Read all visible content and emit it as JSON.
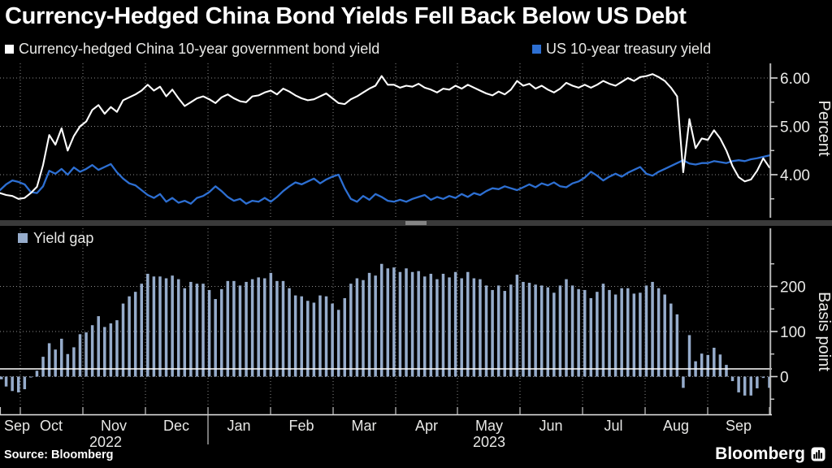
{
  "title": "Currency-Hedged China Bond Yields Fell Back Below US Debt",
  "legend_top": [
    {
      "label": "Currency-hedged China 10-year government bond yield",
      "color": "#ffffff"
    },
    {
      "label": "US 10-year treasury yield",
      "color": "#2d6fd2"
    }
  ],
  "legend_bottom": {
    "label": "Yield gap",
    "color": "#96accb"
  },
  "source": "Source: Bloomberg",
  "brand": "Bloomberg",
  "x_axis": {
    "months": [
      "Sep",
      "Oct",
      "Nov",
      "Dec",
      "Jan",
      "Feb",
      "Mar",
      "Apr",
      "May",
      "Jun",
      "Jul",
      "Aug",
      "Sep"
    ],
    "years": [
      "2022",
      "2023"
    ],
    "range_note": "mid-Sep 2022 through mid-Sep 2023, ~2-day sampling, 126 points"
  },
  "chart_data": [
    {
      "type": "line",
      "panel": "top",
      "y_axis": {
        "label": "Percent",
        "tick_labels": [
          "6.00",
          "5.00",
          "4.00"
        ],
        "tick_values": [
          6,
          5,
          4
        ],
        "minor_ticks": [
          5.5,
          4.5,
          3.5
        ],
        "range": [
          3.1,
          6.3
        ],
        "grid": "dotted"
      },
      "legend_position": "top-left",
      "series": [
        {
          "name": "Currency-hedged China 10-year government bond yield",
          "color": "#ffffff",
          "values": [
            3.62,
            3.58,
            3.56,
            3.5,
            3.52,
            3.62,
            3.75,
            4.2,
            4.82,
            4.62,
            4.96,
            4.5,
            4.8,
            5.0,
            5.1,
            5.34,
            5.44,
            5.26,
            5.4,
            5.3,
            5.54,
            5.6,
            5.66,
            5.74,
            5.86,
            5.74,
            5.82,
            5.62,
            5.76,
            5.58,
            5.42,
            5.5,
            5.58,
            5.62,
            5.56,
            5.48,
            5.6,
            5.66,
            5.58,
            5.52,
            5.5,
            5.62,
            5.64,
            5.7,
            5.74,
            5.66,
            5.78,
            5.72,
            5.64,
            5.58,
            5.54,
            5.56,
            5.62,
            5.68,
            5.58,
            5.48,
            5.46,
            5.56,
            5.62,
            5.7,
            5.78,
            5.84,
            6.04,
            5.86,
            5.86,
            5.8,
            5.84,
            5.82,
            5.88,
            5.8,
            5.76,
            5.7,
            5.78,
            5.76,
            5.84,
            5.78,
            5.86,
            5.8,
            5.74,
            5.68,
            5.64,
            5.72,
            5.66,
            5.76,
            5.94,
            5.84,
            5.88,
            5.78,
            5.84,
            5.76,
            5.7,
            5.78,
            5.9,
            5.84,
            5.8,
            5.86,
            5.8,
            5.86,
            5.94,
            5.88,
            5.84,
            5.92,
            6.0,
            5.94,
            6.02,
            6.04,
            6.08,
            6.02,
            5.94,
            5.8,
            5.62,
            4.05,
            5.15,
            4.55,
            4.75,
            4.72,
            4.92,
            4.75,
            4.5,
            4.18,
            3.95,
            3.86,
            3.9,
            4.08,
            4.34,
            4.15
          ]
        },
        {
          "name": "US 10-year treasury yield",
          "color": "#2d6fd2",
          "values": [
            3.68,
            3.8,
            3.88,
            3.85,
            3.8,
            3.64,
            3.62,
            3.76,
            4.08,
            4.02,
            4.12,
            4.0,
            4.15,
            4.06,
            4.12,
            4.2,
            4.1,
            4.16,
            4.22,
            4.05,
            3.92,
            3.82,
            3.78,
            3.68,
            3.58,
            3.52,
            3.6,
            3.44,
            3.52,
            3.42,
            3.46,
            3.4,
            3.52,
            3.56,
            3.64,
            3.76,
            3.66,
            3.54,
            3.46,
            3.5,
            3.4,
            3.46,
            3.44,
            3.52,
            3.44,
            3.54,
            3.66,
            3.76,
            3.84,
            3.8,
            3.86,
            3.92,
            3.82,
            3.9,
            3.96,
            4.0,
            3.72,
            3.5,
            3.44,
            3.56,
            3.48,
            3.6,
            3.54,
            3.46,
            3.44,
            3.48,
            3.44,
            3.5,
            3.54,
            3.58,
            3.48,
            3.54,
            3.5,
            3.56,
            3.52,
            3.6,
            3.54,
            3.62,
            3.58,
            3.66,
            3.72,
            3.7,
            3.76,
            3.72,
            3.68,
            3.74,
            3.8,
            3.74,
            3.82,
            3.78,
            3.84,
            3.76,
            3.74,
            3.82,
            3.86,
            3.94,
            4.06,
            3.98,
            3.88,
            3.96,
            4.02,
            3.96,
            4.04,
            4.1,
            4.16,
            4.02,
            3.98,
            4.06,
            4.12,
            4.18,
            4.24,
            4.3,
            4.23,
            4.21,
            4.24,
            4.24,
            4.28,
            4.26,
            4.24,
            4.28,
            4.3,
            4.28,
            4.32,
            4.34,
            4.37,
            4.4
          ]
        }
      ]
    },
    {
      "type": "bar",
      "panel": "bottom",
      "name": "Yield gap",
      "color": "#96accb",
      "note": "yield gap = currency-hedged China yield minus US treasury yield, basis points",
      "y_axis": {
        "label": "Basis point",
        "tick_labels": [
          "200",
          "100",
          "0"
        ],
        "tick_values": [
          200,
          100,
          0
        ],
        "minor_ticks": [
          250,
          150,
          50,
          -50
        ],
        "range": [
          -80,
          290
        ],
        "grid": "dotted"
      },
      "values": [
        -6,
        -22,
        -32,
        -35,
        -28,
        -2,
        13,
        44,
        74,
        60,
        84,
        50,
        65,
        94,
        98,
        114,
        134,
        110,
        118,
        125,
        162,
        178,
        188,
        206,
        228,
        222,
        222,
        218,
        224,
        216,
        196,
        210,
        206,
        206,
        192,
        172,
        194,
        212,
        212,
        202,
        210,
        216,
        220,
        218,
        230,
        212,
        212,
        196,
        180,
        178,
        168,
        164,
        180,
        178,
        162,
        148,
        174,
        206,
        218,
        214,
        230,
        224,
        250,
        240,
        242,
        232,
        240,
        232,
        234,
        222,
        228,
        216,
        228,
        220,
        232,
        218,
        232,
        218,
        216,
        202,
        192,
        202,
        190,
        204,
        226,
        210,
        208,
        204,
        202,
        198,
        186,
        202,
        216,
        202,
        194,
        192,
        174,
        188,
        206,
        192,
        182,
        196,
        196,
        184,
        186,
        202,
        210,
        196,
        182,
        162,
        138,
        -25,
        92,
        34,
        51,
        48,
        64,
        49,
        26,
        -10,
        -35,
        -42,
        -42,
        -26,
        -3,
        -25
      ]
    }
  ]
}
